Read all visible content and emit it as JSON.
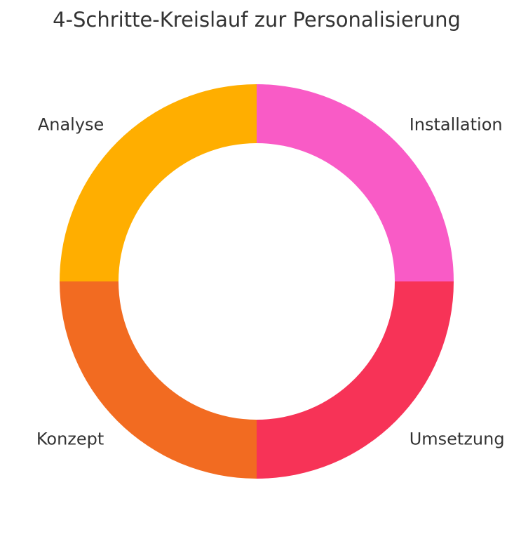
{
  "chart_data": {
    "type": "pie",
    "title": "4-Schritte-Kreislauf zur Personalisierung",
    "donut": true,
    "start_angle_deg": 0,
    "direction": "counterclockwise",
    "categories": [
      "Installation",
      "Analyse",
      "Konzept",
      "Umsetzung"
    ],
    "values": [
      25,
      25,
      25,
      25
    ],
    "colors": [
      "#F95BC6",
      "#FFAE00",
      "#F26B21",
      "#F73357"
    ],
    "legend": "none",
    "grid": false
  }
}
